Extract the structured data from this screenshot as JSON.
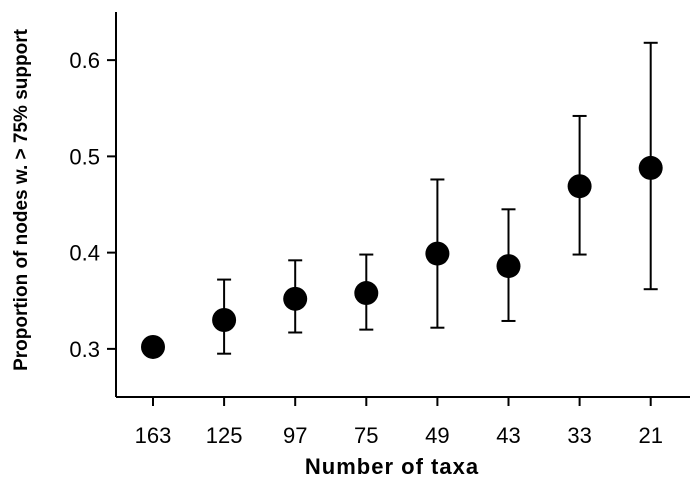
{
  "chart_data": {
    "type": "scatter",
    "title": "",
    "xlabel": "Number of taxa",
    "ylabel": "Proportion of nodes w. > 75% support",
    "categories": [
      "163",
      "125",
      "97",
      "75",
      "49",
      "43",
      "33",
      "21"
    ],
    "series": [
      {
        "values": [
          0.302,
          0.33,
          0.352,
          0.358,
          0.399,
          0.386,
          0.469,
          0.488
        ],
        "error_lower": [
          null,
          0.295,
          0.317,
          0.32,
          0.322,
          0.329,
          0.398,
          0.362
        ],
        "error_upper": [
          null,
          0.372,
          0.392,
          0.398,
          0.476,
          0.445,
          0.542,
          0.618
        ]
      }
    ],
    "yticks": [
      "0.3",
      "0.4",
      "0.5",
      "0.6"
    ],
    "ylim": [
      0.25,
      0.65
    ],
    "grid": false,
    "legend": "none",
    "marker_color": "#000000"
  }
}
